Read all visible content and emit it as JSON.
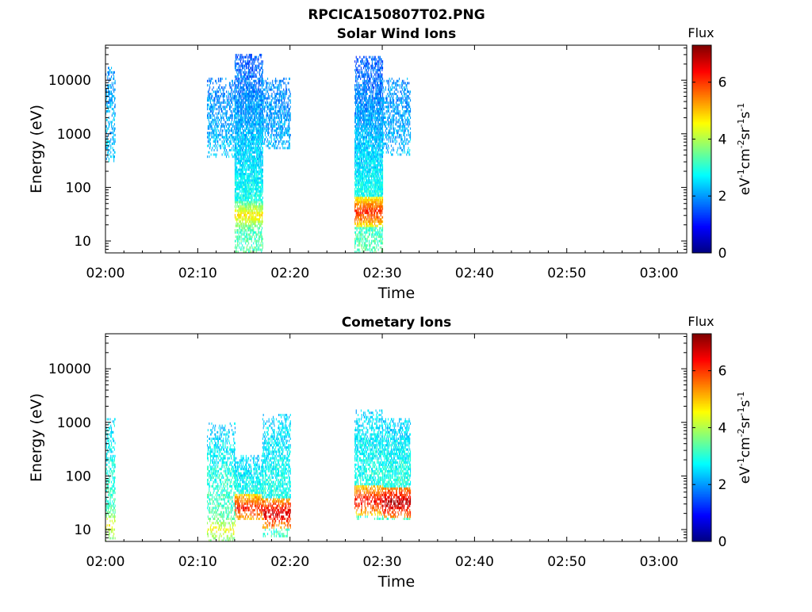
{
  "figure_title": "RPCICA150807T02.PNG",
  "chart_data": [
    {
      "type": "heatmap",
      "title": "Solar Wind Ions",
      "xlabel": "Time",
      "ylabel": "Energy (eV)",
      "yscale": "log",
      "ylim": [
        6,
        45000
      ],
      "xlim": [
        "02:00",
        "03:03"
      ],
      "x_ticks": [
        "02:00",
        "02:10",
        "02:20",
        "02:30",
        "02:40",
        "02:50",
        "03:00"
      ],
      "y_ticks": [
        "10",
        "100",
        "1000",
        "10000"
      ],
      "colorbar": {
        "title": "Flux",
        "label": "eV-1cm-2sr-1s-1",
        "range": [
          0,
          7.3
        ],
        "ticks": [
          "0",
          "2",
          "4",
          "6"
        ]
      },
      "bursts": [
        {
          "t_start": "02:00",
          "t_end": "02:01",
          "e_min": 300,
          "e_max": 18000,
          "density": 0.35,
          "flux_low": 2.4,
          "flux_high": 1.9,
          "hot_energy": null,
          "hot_flux": 0
        },
        {
          "t_start": "02:11",
          "t_end": "02:14",
          "e_min": 350,
          "e_max": 11000,
          "density": 0.4,
          "flux_low": 2.4,
          "flux_high": 1.8,
          "hot_energy": null,
          "hot_flux": 0
        },
        {
          "t_start": "02:14",
          "t_end": "02:17",
          "e_min": 6,
          "e_max": 30000,
          "density": 0.75,
          "flux_low": 3.4,
          "flux_high": 1.5,
          "hot_energy": 30,
          "hot_flux": 4.8
        },
        {
          "t_start": "02:17",
          "t_end": "02:20",
          "e_min": 500,
          "e_max": 11000,
          "density": 0.45,
          "flux_low": 2.2,
          "flux_high": 1.9,
          "hot_energy": null,
          "hot_flux": 0
        },
        {
          "t_start": "02:27",
          "t_end": "02:30",
          "e_min": 6,
          "e_max": 28000,
          "density": 0.75,
          "flux_low": 3.4,
          "flux_high": 1.5,
          "hot_energy": 35,
          "hot_flux": 6.2
        },
        {
          "t_start": "02:30",
          "t_end": "02:33",
          "e_min": 400,
          "e_max": 11000,
          "density": 0.4,
          "flux_low": 2.3,
          "flux_high": 1.9,
          "hot_energy": null,
          "hot_flux": 0
        }
      ]
    },
    {
      "type": "heatmap",
      "title": "Cometary Ions",
      "xlabel": "Time",
      "ylabel": "Energy (eV)",
      "yscale": "log",
      "ylim": [
        6,
        45000
      ],
      "xlim": [
        "02:00",
        "03:03"
      ],
      "x_ticks": [
        "02:00",
        "02:10",
        "02:20",
        "02:30",
        "02:40",
        "02:50",
        "03:00"
      ],
      "y_ticks": [
        "10",
        "100",
        "1000",
        "10000"
      ],
      "colorbar": {
        "title": "Flux",
        "label": "eV-1cm-2sr-1s-1",
        "range": [
          0,
          7.3
        ],
        "ticks": [
          "0",
          "2",
          "4",
          "6"
        ]
      },
      "bursts": [
        {
          "t_start": "02:00",
          "t_end": "02:01",
          "e_min": 6,
          "e_max": 1200,
          "density": 0.4,
          "flux_low": 3.6,
          "flux_high": 2.4,
          "hot_energy": 12,
          "hot_flux": 4.8
        },
        {
          "t_start": "02:11",
          "t_end": "02:14",
          "e_min": 6,
          "e_max": 1000,
          "density": 0.4,
          "flux_low": 3.6,
          "flux_high": 2.4,
          "hot_energy": 10,
          "hot_flux": 4.6
        },
        {
          "t_start": "02:14",
          "t_end": "02:17",
          "e_min": 15,
          "e_max": 250,
          "density": 0.55,
          "flux_low": 3.2,
          "flux_high": 2.4,
          "hot_energy": 25,
          "hot_flux": 6.3
        },
        {
          "t_start": "02:17",
          "t_end": "02:20",
          "e_min": 7,
          "e_max": 1500,
          "density": 0.5,
          "flux_low": 3.2,
          "flux_high": 2.4,
          "hot_energy": 20,
          "hot_flux": 6.8
        },
        {
          "t_start": "02:27",
          "t_end": "02:30",
          "e_min": 15,
          "e_max": 1800,
          "density": 0.5,
          "flux_low": 3.2,
          "flux_high": 2.4,
          "hot_energy": 35,
          "hot_flux": 6.5
        },
        {
          "t_start": "02:30",
          "t_end": "02:33",
          "e_min": 15,
          "e_max": 1200,
          "density": 0.6,
          "flux_low": 3.3,
          "flux_high": 2.4,
          "hot_energy": 32,
          "hot_flux": 7.0
        }
      ]
    }
  ]
}
